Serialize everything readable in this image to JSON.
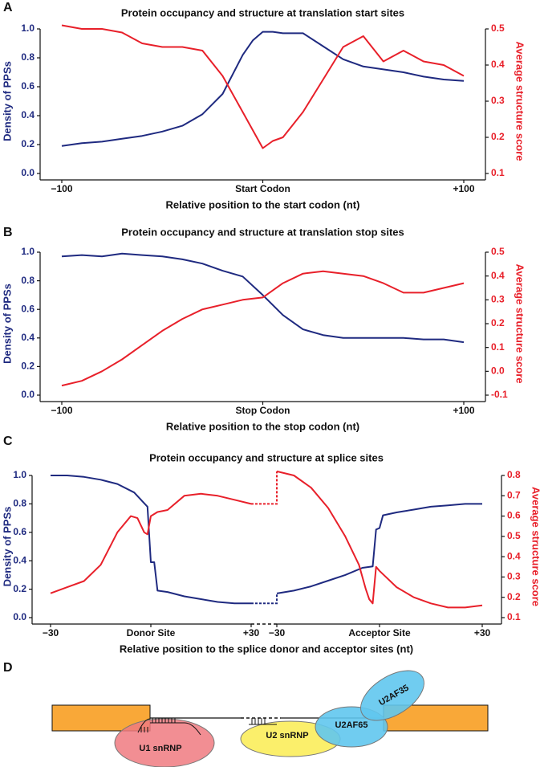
{
  "chart_data": [
    {
      "type": "line",
      "panel_label": "A",
      "title": "Protein occupancy and structure at translation start sites",
      "xlabel": "Relative position to the start codon (nt)",
      "ylabel": "Density of PPSs",
      "y2label": "Average structure score",
      "x": [
        -100,
        -90,
        -80,
        -70,
        -60,
        -50,
        -40,
        -30,
        -20,
        -10,
        -5,
        0,
        5,
        10,
        20,
        30,
        40,
        50,
        60,
        70,
        80,
        90,
        100
      ],
      "xlim": [
        -100,
        100
      ],
      "xticks": [
        {
          "value": -100,
          "label": "−100"
        },
        {
          "value": 0,
          "label": "Start Codon"
        },
        {
          "value": 100,
          "label": "+100"
        }
      ],
      "ylim": [
        0,
        1
      ],
      "yticks": [
        {
          "value": 0,
          "label": "0.0"
        },
        0.2,
        0.4,
        0.6,
        0.8,
        {
          "value": 1,
          "label": "1.0"
        }
      ],
      "y2lim": [
        0.1,
        0.5
      ],
      "y2ticks": [
        0.1,
        0.2,
        0.3,
        0.4,
        0.5
      ],
      "series": [
        {
          "color": "#1f2a80",
          "values": [
            0.19,
            0.21,
            0.22,
            0.24,
            0.26,
            0.29,
            0.33,
            0.41,
            0.55,
            0.82,
            0.92,
            0.98,
            0.98,
            0.97,
            0.97,
            0.88,
            0.79,
            0.74,
            0.72,
            0.7,
            0.67,
            0.65,
            0.64
          ]
        },
        {
          "color": "#e8202a",
          "axis": "y2",
          "values": [
            0.51,
            0.5,
            0.5,
            0.49,
            0.46,
            0.45,
            0.45,
            0.44,
            0.37,
            0.27,
            0.22,
            0.17,
            0.19,
            0.2,
            0.27,
            0.36,
            0.45,
            0.48,
            0.41,
            0.44,
            0.41,
            0.4,
            0.37
          ]
        }
      ]
    },
    {
      "type": "line",
      "panel_label": "B",
      "title": "Protein occupancy and structure at translation stop sites",
      "xlabel": "Relative position to the stop codon (nt)",
      "ylabel": "Density of PPSs",
      "y2label": "Average structure score",
      "x": [
        -100,
        -90,
        -80,
        -70,
        -60,
        -50,
        -40,
        -30,
        -20,
        -10,
        0,
        10,
        20,
        30,
        40,
        50,
        60,
        70,
        80,
        90,
        100
      ],
      "xlim": [
        -100,
        100
      ],
      "xticks": [
        {
          "value": -100,
          "label": "−100"
        },
        {
          "value": 0,
          "label": "Stop Codon"
        },
        {
          "value": 100,
          "label": "+100"
        }
      ],
      "ylim": [
        0,
        1
      ],
      "yticks": [
        {
          "value": 0,
          "label": "0.0"
        },
        0.2,
        0.4,
        0.6,
        0.8,
        {
          "value": 1,
          "label": "1.0"
        }
      ],
      "y2lim": [
        -0.1,
        0.5
      ],
      "y2ticks": [
        -0.1,
        {
          "value": 0,
          "label": "0.0"
        },
        0.1,
        0.2,
        0.3,
        0.4,
        0.5
      ],
      "series": [
        {
          "color": "#1f2a80",
          "values": [
            0.97,
            0.98,
            0.97,
            0.99,
            0.98,
            0.97,
            0.95,
            0.92,
            0.87,
            0.83,
            0.7,
            0.56,
            0.46,
            0.42,
            0.4,
            0.4,
            0.4,
            0.4,
            0.39,
            0.39,
            0.37
          ]
        },
        {
          "color": "#e8202a",
          "axis": "y2",
          "values": [
            -0.06,
            -0.04,
            0.0,
            0.05,
            0.11,
            0.17,
            0.22,
            0.26,
            0.28,
            0.3,
            0.31,
            0.37,
            0.41,
            0.42,
            0.41,
            0.4,
            0.37,
            0.33,
            0.33,
            0.35,
            0.37
          ]
        }
      ]
    },
    {
      "type": "line",
      "panel_label": "C",
      "title": "Protein occupancy and structure at splice sites",
      "xlabel": "Relative position to the splice donor and acceptor sites (nt)",
      "ylabel": "Density of PPSs",
      "y2label": "Average structure score",
      "ylim": [
        0,
        1
      ],
      "yticks": [
        {
          "value": 0,
          "label": "0.0"
        },
        0.2,
        0.4,
        0.6,
        0.8,
        {
          "value": 1,
          "label": "1.0"
        }
      ],
      "y2lim": [
        0.1,
        0.8
      ],
      "y2ticks": [
        0.1,
        0.2,
        0.3,
        0.4,
        0.5,
        0.6,
        0.7,
        0.8
      ],
      "panels": [
        {
          "xlim": [
            -30,
            30
          ],
          "xticks": [
            {
              "value": -30,
              "label": "−30"
            },
            {
              "value": 0,
              "label": "Donor Site"
            },
            {
              "value": 30,
              "label": "+30"
            }
          ],
          "series": [
            {
              "color": "#1f2a80",
              "x": [
                -30,
                -25,
                -20,
                -15,
                -10,
                -5,
                -1,
                0,
                1,
                2,
                5,
                10,
                15,
                20,
                25,
                30
              ],
              "values": [
                1.0,
                1.0,
                0.99,
                0.97,
                0.94,
                0.88,
                0.78,
                0.39,
                0.39,
                0.19,
                0.18,
                0.15,
                0.13,
                0.11,
                0.1,
                0.1
              ]
            },
            {
              "color": "#e8202a",
              "axis": "y2",
              "x": [
                -30,
                -25,
                -20,
                -15,
                -10,
                -6,
                -4,
                -2,
                -1,
                0,
                2,
                5,
                10,
                15,
                20,
                25,
                30
              ],
              "values": [
                0.22,
                0.25,
                0.28,
                0.36,
                0.52,
                0.6,
                0.59,
                0.52,
                0.51,
                0.6,
                0.62,
                0.63,
                0.7,
                0.71,
                0.7,
                0.68,
                0.66
              ]
            }
          ]
        },
        {
          "xlim": [
            -30,
            30
          ],
          "xticks": [
            {
              "value": -30,
              "label": "−30"
            },
            {
              "value": 0,
              "label": "Acceptor Site"
            },
            {
              "value": 30,
              "label": "+30"
            }
          ],
          "series": [
            {
              "color": "#1f2a80",
              "x": [
                -30,
                -25,
                -20,
                -15,
                -10,
                -5,
                -2,
                -1,
                0,
                1,
                5,
                10,
                15,
                20,
                25,
                30
              ],
              "values": [
                0.17,
                0.19,
                0.22,
                0.26,
                0.3,
                0.35,
                0.36,
                0.62,
                0.63,
                0.72,
                0.74,
                0.76,
                0.78,
                0.79,
                0.8,
                0.8
              ]
            },
            {
              "color": "#e8202a",
              "axis": "y2",
              "x": [
                -30,
                -25,
                -20,
                -15,
                -10,
                -6,
                -4,
                -3,
                -2,
                -1,
                0,
                5,
                10,
                15,
                20,
                25,
                30
              ],
              "values": [
                0.82,
                0.8,
                0.74,
                0.64,
                0.5,
                0.36,
                0.24,
                0.19,
                0.17,
                0.35,
                0.33,
                0.25,
                0.2,
                0.17,
                0.15,
                0.15,
                0.16
              ]
            }
          ]
        }
      ]
    }
  ],
  "diagram": {
    "panel_label": "D",
    "u1": "U1 snRNP",
    "u2": "U2 snRNP",
    "u2af65": "U2AF65",
    "u2af35": "U2AF35"
  }
}
